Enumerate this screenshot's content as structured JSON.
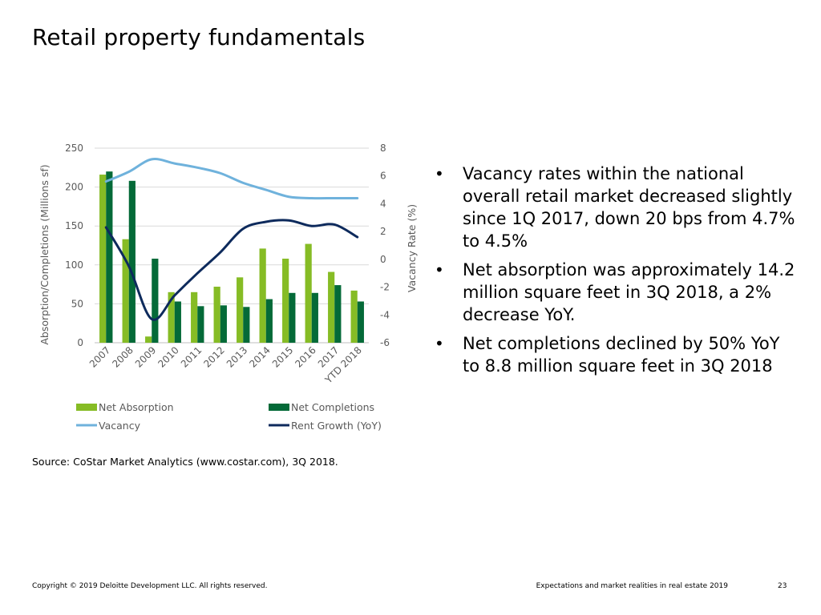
{
  "slide": {
    "title": "Retail property fundamentals",
    "source": "Source: CoStar Market Analytics (www.costar.com), 3Q 2018.",
    "footer_left": "Copyright © 2019 Deloitte Development LLC. All rights reserved.",
    "footer_right": "Expectations and market realities in real estate 2019",
    "page_number": "23"
  },
  "bullets": [
    "Vacancy rates within the national overall retail market decreased slightly since 1Q 2017, down 20 bps from 4.7% to 4.5%",
    "Net absorption was approximately 14.2 million square feet in 3Q 2018, a 2% decrease YoY.",
    "Net completions declined by 50% YoY to 8.8 million square feet in 3Q 2018"
  ],
  "chart_data": {
    "type": "bar",
    "title": "",
    "categories": [
      "2007",
      "2008",
      "2009",
      "2010",
      "2011",
      "2012",
      "2013",
      "2014",
      "2015",
      "2016",
      "2017",
      "YTD 2018"
    ],
    "ylabel": "Absorption/Completions (Millions sf)",
    "y2label": "Vacancy Rate (%)",
    "ylim": [
      0,
      250
    ],
    "yticks": [
      "0",
      "50",
      "100",
      "150",
      "200",
      "250"
    ],
    "y2lim": [
      -6,
      8
    ],
    "y2ticks": [
      "-6",
      "-4",
      "-2",
      "0",
      "2",
      "4",
      "6",
      "8"
    ],
    "grid": true,
    "legend_position": "bottom",
    "series": [
      {
        "name": "Net Absorption",
        "type": "bar",
        "axis": "left",
        "color": "#86BC25",
        "values": [
          216,
          133,
          8,
          65,
          65,
          72,
          84,
          121,
          108,
          127,
          91,
          67
        ]
      },
      {
        "name": "Net Completions",
        "type": "bar",
        "axis": "left",
        "color": "#046A38",
        "values": [
          220,
          208,
          108,
          53,
          47,
          48,
          46,
          56,
          64,
          64,
          74,
          53
        ]
      },
      {
        "name": "Vacancy",
        "type": "line",
        "axis": "right",
        "color": "#6FB2DC",
        "values": [
          5.6,
          6.3,
          7.2,
          6.9,
          6.6,
          6.2,
          5.5,
          5.0,
          4.5,
          4.4,
          4.4,
          4.4
        ]
      },
      {
        "name": "Rent Growth (YoY)",
        "type": "line",
        "axis": "right",
        "color": "#0D2A5C",
        "values": [
          2.3,
          -0.5,
          -4.3,
          -2.6,
          -1.0,
          0.5,
          2.2,
          2.7,
          2.8,
          2.4,
          2.5,
          1.6
        ]
      }
    ]
  }
}
